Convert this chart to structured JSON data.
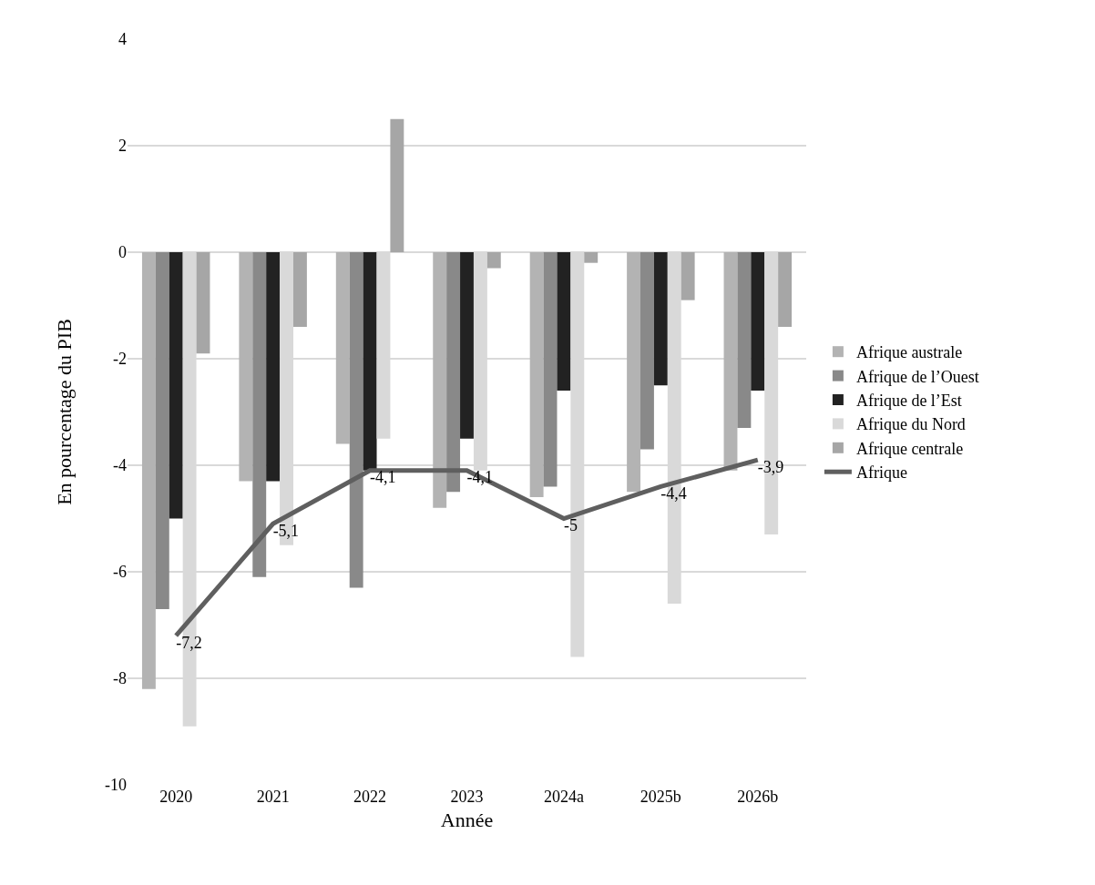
{
  "chart_data": {
    "type": "bar",
    "xlabel": "Année",
    "ylabel": "En pourcentage du PIB",
    "categories": [
      "2020",
      "2021",
      "2022",
      "2023",
      "2024a",
      "2025b",
      "2026b"
    ],
    "series": [
      {
        "name": "Afrique australe",
        "color": "#b3b3b3",
        "values": [
          -8.2,
          -4.3,
          -3.6,
          -4.8,
          -4.6,
          -4.5,
          -4.1
        ]
      },
      {
        "name": "Afrique de l’Ouest",
        "color": "#898989",
        "values": [
          -6.7,
          -6.1,
          -6.3,
          -4.5,
          -4.4,
          -3.7,
          -3.3
        ]
      },
      {
        "name": "Afrique de l’Est",
        "color": "#222222",
        "values": [
          -5.0,
          -4.3,
          -4.1,
          -3.5,
          -2.6,
          -2.5,
          -2.6
        ]
      },
      {
        "name": "Afrique du Nord",
        "color": "#d9d9d9",
        "values": [
          -8.9,
          -5.5,
          -3.5,
          -4.1,
          -7.6,
          -6.6,
          -5.3
        ]
      },
      {
        "name": "Afrique centrale",
        "color": "#a6a6a6",
        "values": [
          -1.9,
          -1.4,
          2.5,
          -0.3,
          -0.2,
          -0.9,
          -1.4
        ]
      },
      {
        "name": "Afrique",
        "type": "line",
        "color": "#5f5f5f",
        "values": [
          -7.2,
          -5.1,
          -4.1,
          -4.1,
          -5,
          -4.4,
          -3.9
        ],
        "value_labels": [
          "-7,2",
          "-5,1",
          "-4,1",
          "-4,1",
          "-5",
          "-4,4",
          "-3,9"
        ]
      }
    ],
    "ylim": [
      -10,
      4
    ],
    "yticks": [
      -10,
      -8,
      -6,
      -4,
      -2,
      0,
      2,
      4
    ],
    "grid": "y",
    "legend": "right",
    "marker": "none",
    "line_style": "solid"
  }
}
